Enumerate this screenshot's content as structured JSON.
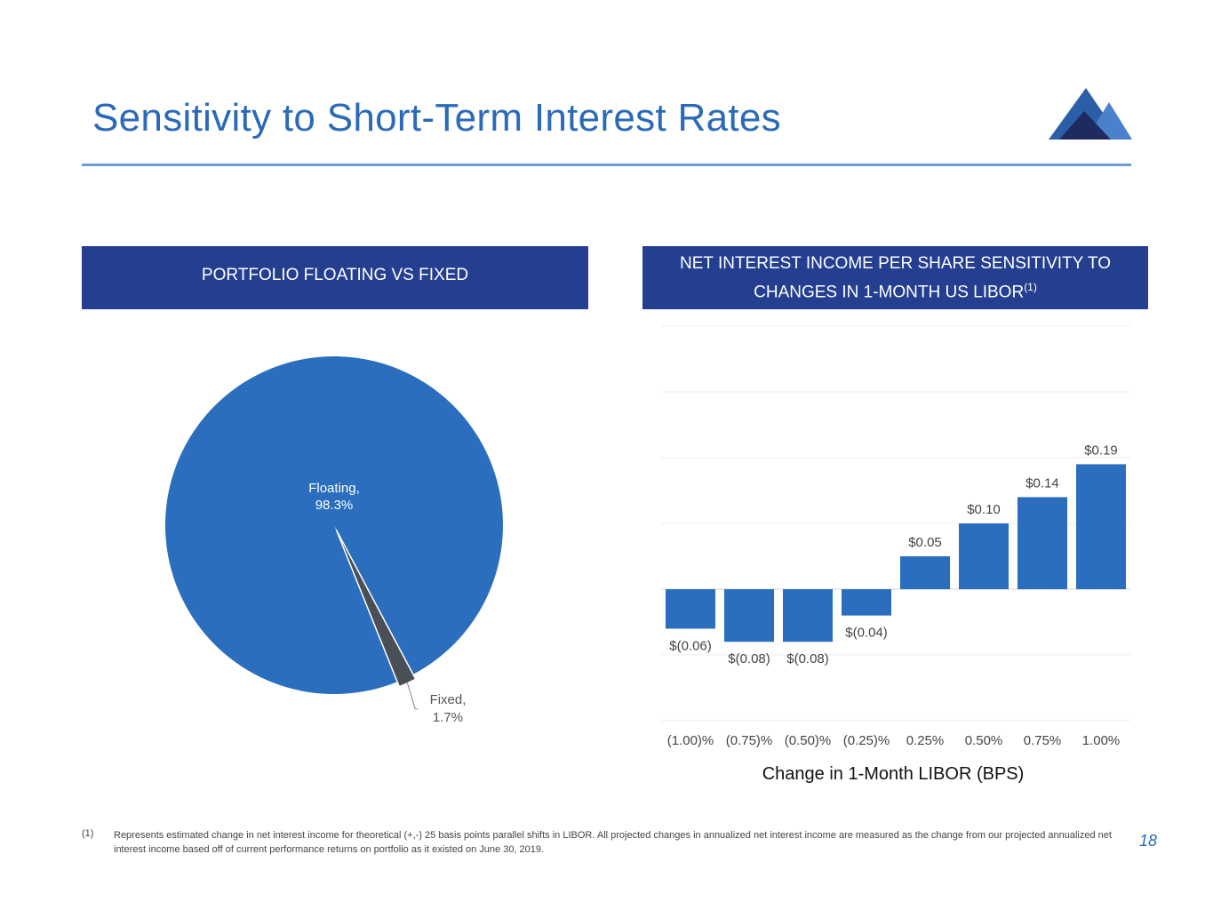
{
  "title": "Sensitivity to Short-Term Interest Rates",
  "colors": {
    "accent": "#2a6ab8",
    "header_bg": "#243f8f",
    "bar": "#2a6ebd",
    "fixed_slice": "#4a4f55"
  },
  "left_panel": {
    "header": "PORTFOLIO FLOATING VS FIXED"
  },
  "right_panel": {
    "header_line1": "NET INTEREST INCOME PER SHARE SENSITIVITY TO",
    "header_line2": "CHANGES IN 1-MONTH US LIBOR",
    "header_sup": "(1)"
  },
  "chart_data": [
    {
      "type": "pie",
      "slices": [
        {
          "name": "Floating",
          "value": 98.3,
          "label_line1": "Floating,",
          "label_line2": "98.3%",
          "color": "#2a6ebd"
        },
        {
          "name": "Fixed",
          "value": 1.7,
          "label_line1": "Fixed,",
          "label_line2": "1.7%",
          "color": "#4a4f55"
        }
      ]
    },
    {
      "type": "bar",
      "categories": [
        "(1.00)%",
        "(0.75)%",
        "(0.50)%",
        "(0.25)%",
        "0.25%",
        "0.50%",
        "0.75%",
        "1.00%"
      ],
      "values": [
        -0.06,
        -0.08,
        -0.08,
        -0.04,
        0.05,
        0.1,
        0.14,
        0.19
      ],
      "data_labels": [
        "$(0.06)",
        "$(0.08)",
        "$(0.08)",
        "$(0.04)",
        "$0.05",
        "$0.10",
        "$0.14",
        "$0.19"
      ],
      "xlabel": "Change in 1-Month LIBOR (BPS)",
      "ylim": [
        -0.2,
        0.4
      ],
      "grid": true
    }
  ],
  "footnote": {
    "marker": "(1)",
    "text": "Represents estimated change in net interest income for theoretical (+,-) 25 basis points parallel shifts in LIBOR. All projected changes in annualized net interest income are measured as the change from our projected annualized net interest income based off of current performance returns on portfolio as it existed on June 30, 2019."
  },
  "page_number": "18"
}
